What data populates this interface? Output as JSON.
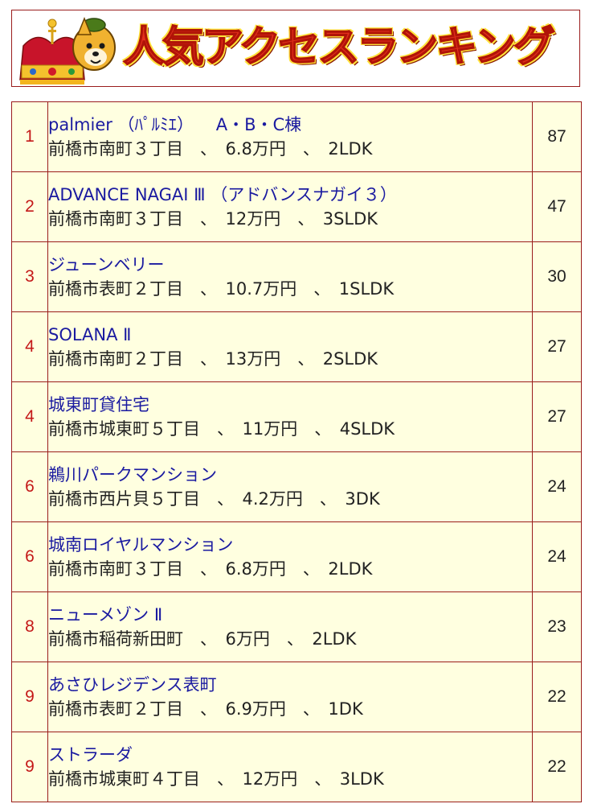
{
  "header": {
    "title": "人気アクセスランキング",
    "mascot_icon": "crown-mascot-icon"
  },
  "colors": {
    "rank_number": "#c41818",
    "property_link": "#1a1aa0",
    "row_background": "#ffffe0",
    "border": "#9a1c1c",
    "banner_text": "#e4301c",
    "banner_text_outline": "#ffe23a"
  },
  "ranking": [
    {
      "rank": "1",
      "name": "palmier （ﾊﾟﾙﾐｴ） 　A・B・C棟",
      "address": "前橋市南町３丁目",
      "price": "6.8万円",
      "layout": "2LDK",
      "count": "87"
    },
    {
      "rank": "2",
      "name": "ADVANCE NAGAI Ⅲ （アドバンスナガイ３）",
      "address": "前橋市南町３丁目",
      "price": "12万円",
      "layout": "3SLDK",
      "count": "47"
    },
    {
      "rank": "3",
      "name": "ジューンベリー",
      "address": "前橋市表町２丁目",
      "price": "10.7万円",
      "layout": "1SLDK",
      "count": "30"
    },
    {
      "rank": "4",
      "name": "SOLANA Ⅱ",
      "address": "前橋市南町２丁目",
      "price": "13万円",
      "layout": "2SLDK",
      "count": "27"
    },
    {
      "rank": "4",
      "name": "城東町貸住宅",
      "address": "前橋市城東町５丁目",
      "price": "11万円",
      "layout": "4SLDK",
      "count": "27"
    },
    {
      "rank": "6",
      "name": "鵜川パークマンション",
      "address": "前橋市西片貝５丁目",
      "price": "4.2万円",
      "layout": "3DK",
      "count": "24"
    },
    {
      "rank": "6",
      "name": "城南ロイヤルマンション",
      "address": "前橋市南町３丁目",
      "price": "6.8万円",
      "layout": "2LDK",
      "count": "24"
    },
    {
      "rank": "8",
      "name": "ニューメゾン Ⅱ",
      "address": "前橋市稲荷新田町",
      "price": "6万円",
      "layout": "2LDK",
      "count": "23"
    },
    {
      "rank": "9",
      "name": "あさひレジデンス表町",
      "address": "前橋市表町２丁目",
      "price": "6.9万円",
      "layout": "1DK",
      "count": "22"
    },
    {
      "rank": "9",
      "name": "ストラーダ",
      "address": "前橋市城東町４丁目",
      "price": "12万円",
      "layout": "3LDK",
      "count": "22"
    }
  ]
}
